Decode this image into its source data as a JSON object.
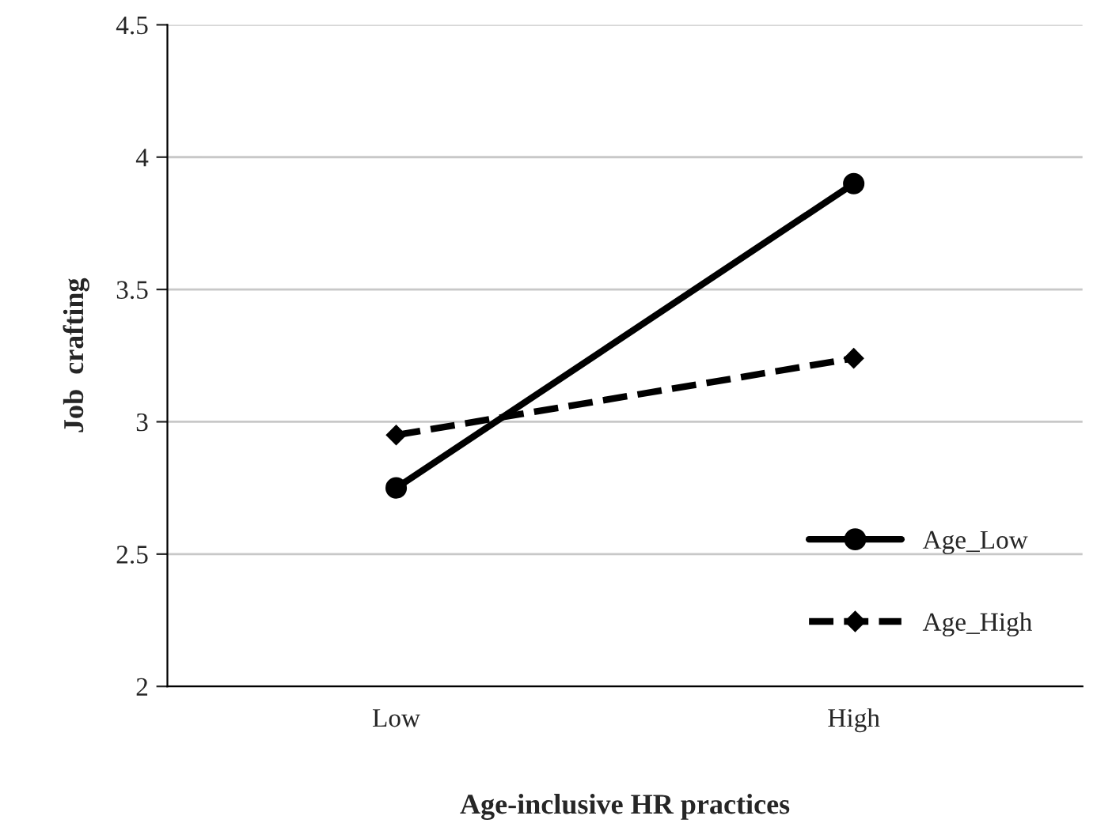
{
  "chart_data": {
    "type": "line",
    "xlabel": "Age-inclusive HR practices",
    "ylabel": "Job  crafting",
    "categories": [
      "Low",
      "High"
    ],
    "series": [
      {
        "name": "Age_Low",
        "color": "#000000",
        "values": [
          2.75,
          3.9
        ],
        "marker": "circle",
        "line_style": "solid"
      },
      {
        "name": "Age_High",
        "color": "#000000",
        "values": [
          2.95,
          3.24
        ],
        "marker": "diamond",
        "line_style": "dashed"
      }
    ],
    "ylim": [
      2,
      4.5
    ],
    "yticks": [
      2,
      2.5,
      3,
      3.5,
      4,
      4.5
    ],
    "grid": "y",
    "legend": "bottom right"
  }
}
